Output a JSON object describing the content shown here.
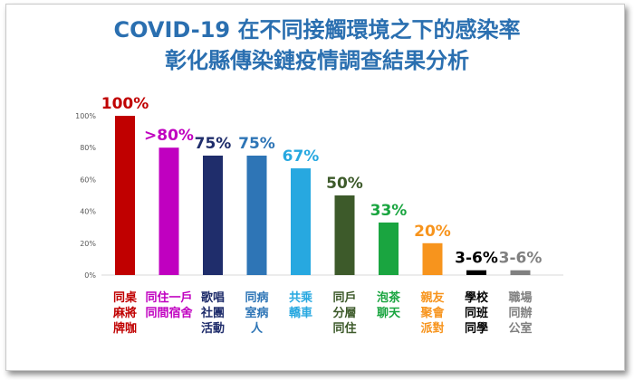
{
  "chart_data": {
    "type": "bar",
    "title": "COVID-19 在不同接觸環境之下的感染率",
    "subtitle": "彰化縣傳染鏈疫情調查結果分析",
    "xlabel": "",
    "ylabel": "",
    "ylim": [
      0,
      100
    ],
    "yticks": [
      "0%",
      "20%",
      "40%",
      "60%",
      "80%",
      "100%"
    ],
    "grid": false,
    "categories": [
      [
        "同桌",
        "麻將",
        "牌咖"
      ],
      [
        "同住一戶",
        "同間宿舍"
      ],
      [
        "歌唱",
        "社團",
        "活動"
      ],
      [
        "同病",
        "室病",
        "人"
      ],
      [
        "共乘",
        "轎車"
      ],
      [
        "同戶",
        "分層",
        "同住"
      ],
      [
        "泡茶",
        "聊天"
      ],
      [
        "親友",
        "聚會",
        "派對"
      ],
      [
        "學校",
        "同班",
        "同學"
      ],
      [
        "職場",
        "同辦",
        "公室"
      ]
    ],
    "values": [
      100,
      80,
      75,
      75,
      67,
      50,
      33,
      20,
      3,
      3
    ],
    "data_labels": [
      "100%",
      ">80%",
      "75%",
      "75%",
      "67%",
      "50%",
      "33%",
      "20%",
      "3-6%",
      "3-6%"
    ],
    "colors": [
      "#c00000",
      "#c000c0",
      "#1f2d6b",
      "#2e75b6",
      "#27a8e0",
      "#3d5a2a",
      "#1aa540",
      "#f7941d",
      "#000000",
      "#808080"
    ]
  }
}
